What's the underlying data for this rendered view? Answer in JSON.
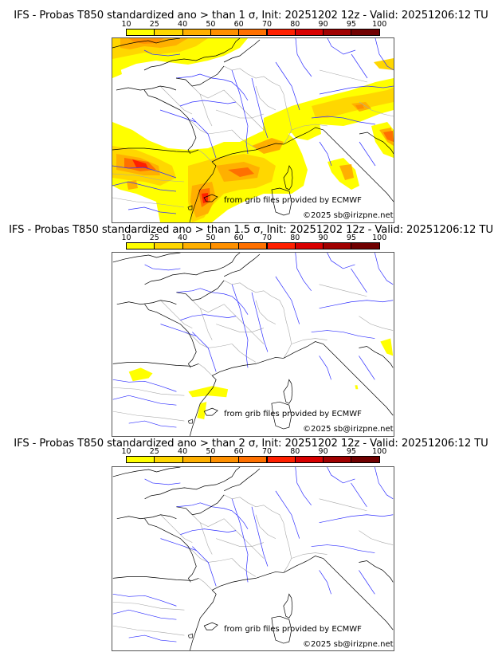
{
  "panels": [
    {
      "title": "IFS - Probas T850  standardized ano > than 1 σ, Init: 20251202 12z - Valid: 20251206:12 TU",
      "threshold_sigma": "1",
      "credit_source": "from grib files provided by ECMWF",
      "credit_copyright": "©2025 sb@irizpne.net"
    },
    {
      "title": "IFS - Probas T850  standardized ano > than 1.5 σ, Init: 20251202 12z - Valid: 20251206:12 TU",
      "threshold_sigma": "1.5",
      "credit_source": "from grib files provided by ECMWF",
      "credit_copyright": "©2025 sb@irizpne.net"
    },
    {
      "title": "IFS - Probas T850  standardized ano > than 2 σ, Init: 20251202 12z - Valid: 20251206:12 TU",
      "threshold_sigma": "2",
      "credit_source": "from grib files provided by ECMWF",
      "credit_copyright": "©2025 sb@irizpne.net"
    }
  ],
  "colorbar": {
    "ticks": [
      "10",
      "25",
      "40",
      "50",
      "60",
      "70",
      "80",
      "90",
      "95",
      "100"
    ],
    "colors": [
      "#ffff00",
      "#ffd700",
      "#ffb000",
      "#ff9000",
      "#ff7000",
      "#ff2000",
      "#d80000",
      "#a00000",
      "#700000"
    ]
  },
  "style": {
    "coast_color": "#000000",
    "river_color": "#3030ff",
    "border_color": "#a8a8a8"
  }
}
